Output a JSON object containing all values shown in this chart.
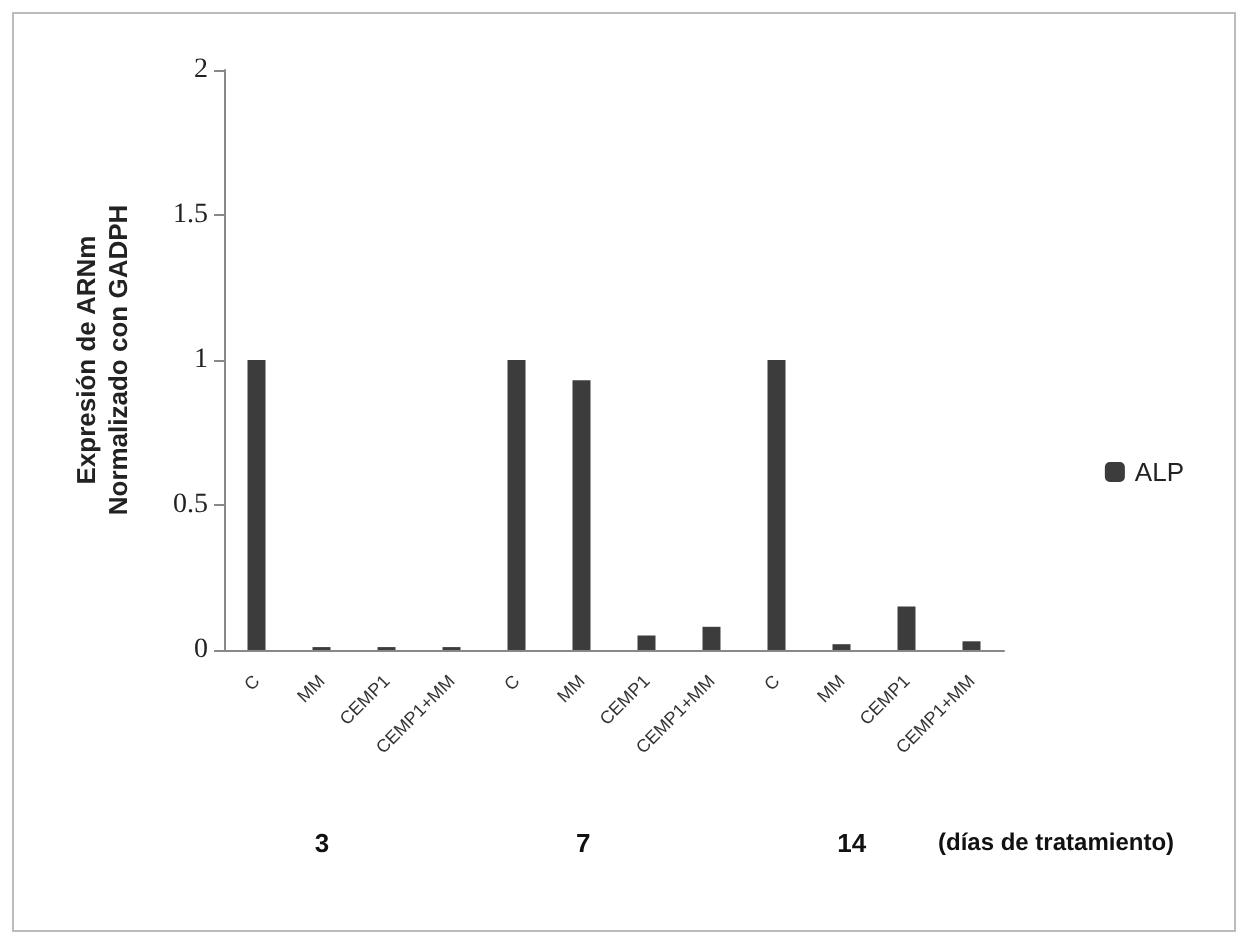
{
  "chart_data": {
    "type": "bar",
    "ylabel": "Expresión de ARNm\nNormalizado con GADPH",
    "categories": [
      "C",
      "MM",
      "CEMP1",
      "CEMP1+MM",
      "C",
      "MM",
      "CEMP1",
      "CEMP1+MM",
      "C",
      "MM",
      "CEMP1",
      "CEMP1+MM"
    ],
    "series": [
      {
        "name": "ALP",
        "color": "#3c3c3c",
        "values": [
          1,
          0.01,
          0.01,
          0.01,
          1,
          0.93,
          0.05,
          0.08,
          1,
          0.02,
          0.15,
          0.03
        ]
      }
    ],
    "ylim": [
      0,
      2
    ],
    "yticks": [
      0,
      0.5,
      1,
      1.5,
      2
    ],
    "grid": false,
    "legend": "right",
    "annotations": [
      "3",
      "7",
      "14",
      "(días de tratamiento)"
    ]
  }
}
